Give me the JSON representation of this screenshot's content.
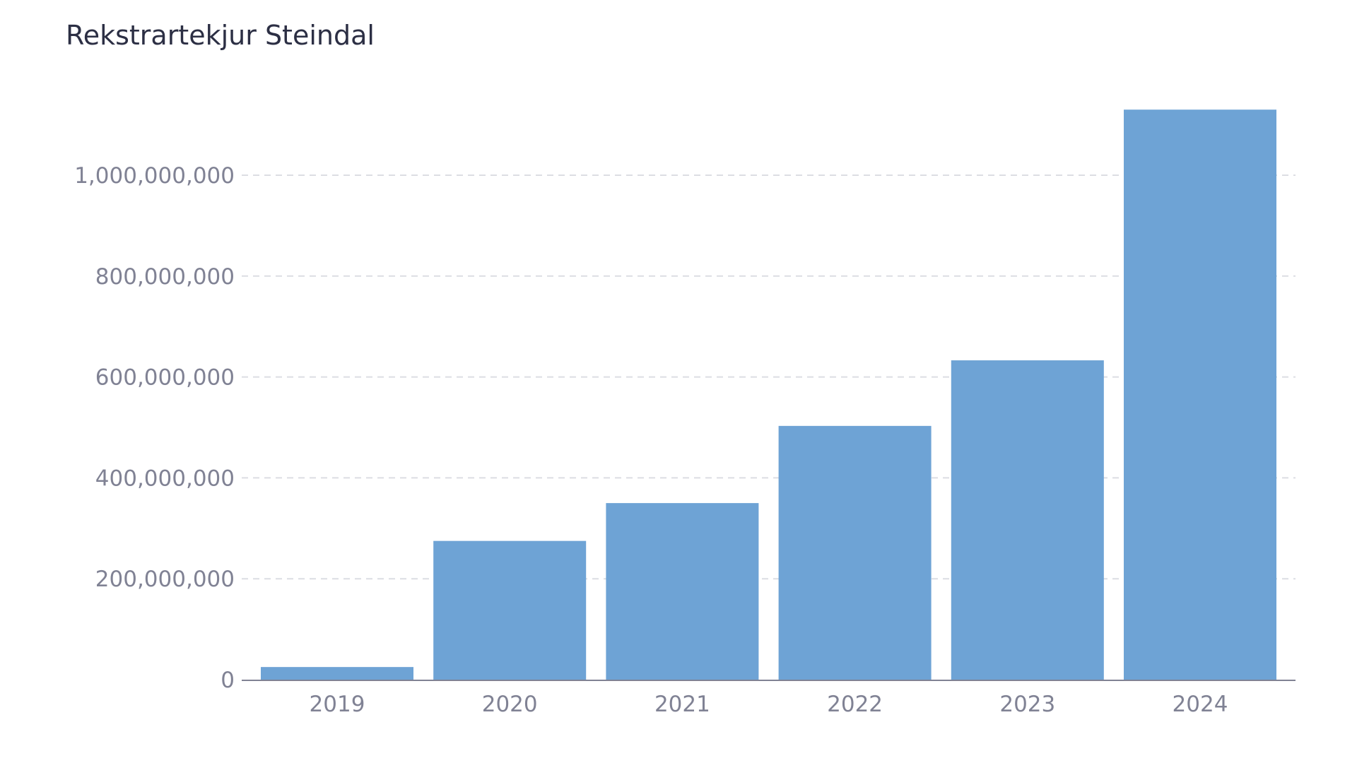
{
  "chart_data": {
    "type": "bar",
    "title": "Rekstrartekjur Steindal",
    "xlabel": "",
    "ylabel": "",
    "categories": [
      "2019",
      "2020",
      "2021",
      "2022",
      "2023",
      "2024"
    ],
    "values": [
      25000000,
      275000000,
      350000000,
      503000000,
      633000000,
      1130000000
    ],
    "ylim": [
      0,
      1200000000
    ],
    "yticks": [
      0,
      200000000,
      400000000,
      600000000,
      800000000,
      1000000000
    ],
    "ytick_labels": [
      "0",
      "200,000,000",
      "400,000,000",
      "600,000,000",
      "800,000,000",
      "1,000,000,000"
    ],
    "grid": "horizontal dashed",
    "legend": "none",
    "bar_color": "#6ea3d5",
    "axis_color": "#808294",
    "grid_color": "#dcdde3",
    "title_color": "#2c2f44"
  }
}
